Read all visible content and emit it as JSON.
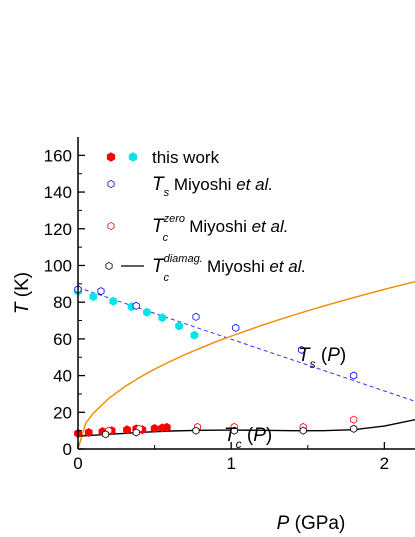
{
  "chart_data": {
    "type": "scatter",
    "title": "",
    "xlabel": {
      "var": "P",
      "unit": "(GPa)"
    },
    "ylabel": {
      "var": "T",
      "unit": "(K)"
    },
    "xlim": [
      0,
      2.2
    ],
    "ylim": [
      0,
      170
    ],
    "x_ticks": [
      "0",
      "1",
      "2"
    ],
    "y_ticks": [
      "0",
      "20",
      "40",
      "60",
      "80",
      "100",
      "120",
      "140",
      "160"
    ],
    "legend_position": "top-right",
    "legend": [
      {
        "id": "this_work",
        "label": "this work",
        "colors": [
          "#ff0000",
          "#00e5e5"
        ],
        "marker": "filled-hexagon"
      },
      {
        "id": "ts_miyoshi",
        "sym": "T",
        "sub": "s",
        "sup": "",
        "text": "Miyoshi",
        "etal": "et al.",
        "color": "#0000ff",
        "marker": "open-hexagon"
      },
      {
        "id": "tc_zero_miyoshi",
        "sym": "T",
        "sub": "c",
        "sup": "zero",
        "text": "Miyoshi",
        "etal": "et al.",
        "color": "#ff0000",
        "marker": "open-hexagon"
      },
      {
        "id": "tc_diamag_miyoshi",
        "sym": "T",
        "sub": "c",
        "sup": "diamag.",
        "text": "Miyoshi",
        "etal": "et al.",
        "color": "#000000",
        "marker": "open-hexagon-line"
      }
    ],
    "annotations": [
      {
        "sym": "T",
        "sub": "s",
        "arg": "(P)"
      },
      {
        "sym": "T",
        "sub": "c",
        "arg": "(P)"
      }
    ],
    "series": [
      {
        "name": "this work",
        "style": "filled",
        "color": "#ff0000",
        "x": [
          0.0,
          0.07,
          0.16,
          0.22,
          0.32,
          0.38,
          0.42,
          0.5,
          0.55,
          0.58
        ],
        "y": [
          8.5,
          9,
          9.5,
          10,
          10.5,
          11,
          10.5,
          11.2,
          11.5,
          11.8
        ]
      },
      {
        "name": "this work",
        "style": "filled",
        "color": "#00e5e5",
        "x": [
          0.0,
          0.1,
          0.23,
          0.35,
          0.45,
          0.55,
          0.66,
          0.76
        ],
        "y": [
          86,
          83,
          80.5,
          77.5,
          74.5,
          71.5,
          67,
          62
        ]
      },
      {
        "name": "Ts Miyoshi et al.",
        "style": "open",
        "color": "#0000ff",
        "x": [
          0.0,
          0.15,
          0.38,
          0.77,
          1.03,
          1.46,
          1.8
        ],
        "y": [
          87,
          86,
          78,
          72,
          66,
          54,
          40
        ]
      },
      {
        "name": "Tc zero Miyoshi et al.",
        "style": "open",
        "color": "#ff0000",
        "x": [
          0.2,
          0.4,
          0.78,
          1.02,
          1.47,
          1.8
        ],
        "y": [
          10,
          11,
          12,
          12,
          12,
          16
        ]
      },
      {
        "name": "Tc diamag. Miyoshi et al.",
        "style": "open",
        "color": "#000000",
        "x": [
          0.18,
          0.38,
          0.77,
          1.02,
          1.47,
          1.8
        ],
        "y": [
          8,
          9,
          10,
          10,
          10,
          11
        ]
      }
    ],
    "lines": [
      {
        "kind": "dashed",
        "color": "#3333ff",
        "x": [
          0,
          2.2
        ],
        "y": [
          88,
          26
        ]
      },
      {
        "kind": "solid",
        "color": "#f08a00",
        "x": [
          0,
          0.05,
          0.1,
          0.2,
          0.3,
          0.4,
          0.5,
          0.6,
          0.7,
          0.8,
          0.9,
          1.0,
          1.2,
          1.4,
          1.6,
          1.8,
          2.0,
          2.2
        ],
        "y": [
          0,
          14,
          19.5,
          27.5,
          33.7,
          38.9,
          43.5,
          47.6,
          51.5,
          55.0,
          58.4,
          61.5,
          67.4,
          72.8,
          77.8,
          82.5,
          87.0,
          91.2
        ]
      },
      {
        "kind": "solid",
        "color": "#000000",
        "x": [
          0,
          0.2,
          0.4,
          0.6,
          0.8,
          1.0,
          1.2,
          1.4,
          1.6,
          1.8,
          2.0,
          2.2
        ],
        "y": [
          7,
          8,
          9,
          9.8,
          10.2,
          10.3,
          10.2,
          10.0,
          10.0,
          10.5,
          12.5,
          16
        ]
      }
    ]
  }
}
